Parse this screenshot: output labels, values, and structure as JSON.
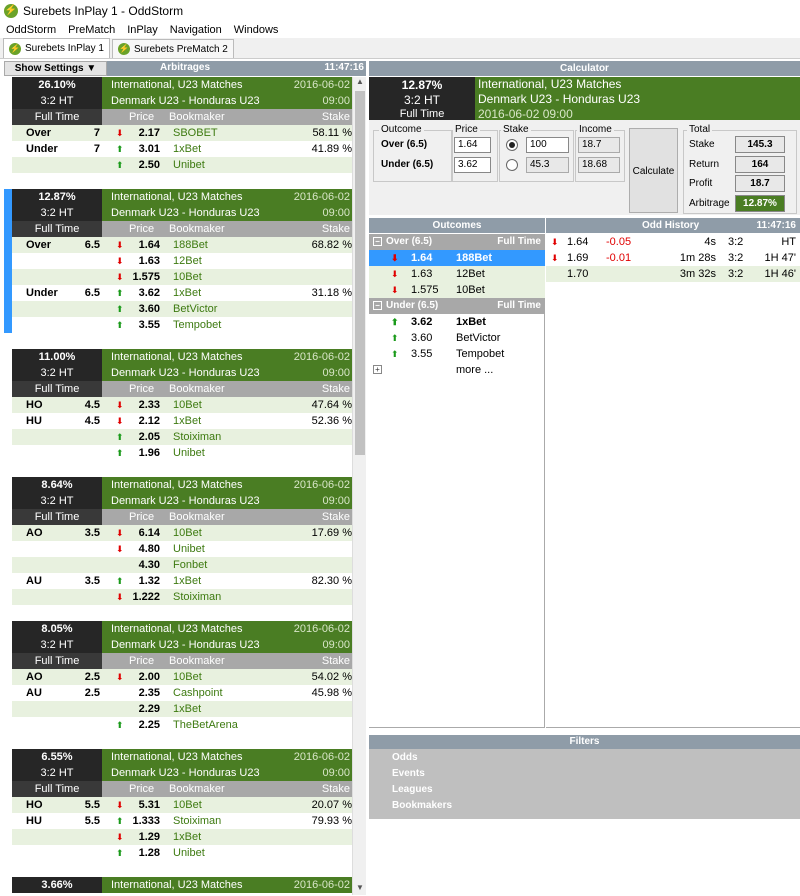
{
  "window": {
    "title": "Surebets InPlay 1 - OddStorm"
  },
  "menu": [
    "OddStorm",
    "PreMatch",
    "InPlay",
    "Navigation",
    "Windows"
  ],
  "tabs": [
    {
      "label": "Surebets InPlay 1"
    },
    {
      "label": "Surebets PreMatch 2"
    }
  ],
  "left": {
    "show_settings": "Show Settings ▼",
    "title": "Arbitrages",
    "time": "11:47:16",
    "col_price": "Price",
    "col_bookmaker": "Bookmaker",
    "col_stake": "Stake",
    "blocks": [
      {
        "pct": "26.10%",
        "score": "3:2 HT",
        "period": "Full Time",
        "league": "International, U23 Matches",
        "date": "2016-06-02",
        "match": "Denmark U23 - Honduras U23",
        "time": "09:00",
        "rows": [
          {
            "outcome": "Over",
            "handicap": "7",
            "dir": "down",
            "price": "2.17",
            "bookmaker": "SBOBET",
            "stake": "58.11 %"
          },
          {
            "outcome": "Under",
            "handicap": "7",
            "dir": "up",
            "price": "3.01",
            "bookmaker": "1xBet",
            "stake": "41.89 %"
          },
          {
            "outcome": "",
            "handicap": "",
            "dir": "up",
            "price": "2.50",
            "bookmaker": "Unibet",
            "stake": ""
          }
        ]
      },
      {
        "pct": "12.87%",
        "score": "3:2 HT",
        "period": "Full Time",
        "league": "International, U23 Matches",
        "date": "2016-06-02",
        "match": "Denmark U23 - Honduras U23",
        "time": "09:00",
        "rows": [
          {
            "outcome": "Over",
            "handicap": "6.5",
            "dir": "down",
            "price": "1.64",
            "bookmaker": "188Bet",
            "stake": "68.82 %"
          },
          {
            "outcome": "",
            "handicap": "",
            "dir": "down",
            "price": "1.63",
            "bookmaker": "12Bet",
            "stake": ""
          },
          {
            "outcome": "",
            "handicap": "",
            "dir": "down",
            "price": "1.575",
            "bookmaker": "10Bet",
            "stake": ""
          },
          {
            "outcome": "Under",
            "handicap": "6.5",
            "dir": "up",
            "price": "3.62",
            "bookmaker": "1xBet",
            "stake": "31.18 %"
          },
          {
            "outcome": "",
            "handicap": "",
            "dir": "up",
            "price": "3.60",
            "bookmaker": "BetVictor",
            "stake": ""
          },
          {
            "outcome": "",
            "handicap": "",
            "dir": "up",
            "price": "3.55",
            "bookmaker": "Tempobet",
            "stake": ""
          }
        ]
      },
      {
        "pct": "11.00%",
        "score": "3:2 HT",
        "period": "Full Time",
        "league": "International, U23 Matches",
        "date": "2016-06-02",
        "match": "Denmark U23 - Honduras U23",
        "time": "09:00",
        "rows": [
          {
            "outcome": "HO",
            "handicap": "4.5",
            "dir": "down",
            "price": "2.33",
            "bookmaker": "10Bet",
            "stake": "47.64 %"
          },
          {
            "outcome": "HU",
            "handicap": "4.5",
            "dir": "down",
            "price": "2.12",
            "bookmaker": "1xBet",
            "stake": "52.36 %"
          },
          {
            "outcome": "",
            "handicap": "",
            "dir": "up",
            "price": "2.05",
            "bookmaker": "Stoiximan",
            "stake": ""
          },
          {
            "outcome": "",
            "handicap": "",
            "dir": "up",
            "price": "1.96",
            "bookmaker": "Unibet",
            "stake": ""
          }
        ]
      },
      {
        "pct": "8.64%",
        "score": "3:2 HT",
        "period": "Full Time",
        "league": "International, U23 Matches",
        "date": "2016-06-02",
        "match": "Denmark U23 - Honduras U23",
        "time": "09:00",
        "rows": [
          {
            "outcome": "AO",
            "handicap": "3.5",
            "dir": "down",
            "price": "6.14",
            "bookmaker": "10Bet",
            "stake": "17.69 %"
          },
          {
            "outcome": "",
            "handicap": "",
            "dir": "down",
            "price": "4.80",
            "bookmaker": "Unibet",
            "stake": ""
          },
          {
            "outcome": "",
            "handicap": "",
            "dir": "",
            "price": "4.30",
            "bookmaker": "Fonbet",
            "stake": ""
          },
          {
            "outcome": "AU",
            "handicap": "3.5",
            "dir": "up",
            "price": "1.32",
            "bookmaker": "1xBet",
            "stake": "82.30 %"
          },
          {
            "outcome": "",
            "handicap": "",
            "dir": "down",
            "price": "1.222",
            "bookmaker": "Stoiximan",
            "stake": ""
          }
        ]
      },
      {
        "pct": "8.05%",
        "score": "3:2 HT",
        "period": "Full Time",
        "league": "International, U23 Matches",
        "date": "2016-06-02",
        "match": "Denmark U23 - Honduras U23",
        "time": "09:00",
        "rows": [
          {
            "outcome": "AO",
            "handicap": "2.5",
            "dir": "down",
            "price": "2.00",
            "bookmaker": "10Bet",
            "stake": "54.02 %"
          },
          {
            "outcome": "AU",
            "handicap": "2.5",
            "dir": "",
            "price": "2.35",
            "bookmaker": "Cashpoint",
            "stake": "45.98 %"
          },
          {
            "outcome": "",
            "handicap": "",
            "dir": "",
            "price": "2.29",
            "bookmaker": "1xBet",
            "stake": ""
          },
          {
            "outcome": "",
            "handicap": "",
            "dir": "up",
            "price": "2.25",
            "bookmaker": "TheBetArena",
            "stake": ""
          }
        ]
      },
      {
        "pct": "6.55%",
        "score": "3:2 HT",
        "period": "Full Time",
        "league": "International, U23 Matches",
        "date": "2016-06-02",
        "match": "Denmark U23 - Honduras U23",
        "time": "09:00",
        "rows": [
          {
            "outcome": "HO",
            "handicap": "5.5",
            "dir": "down",
            "price": "5.31",
            "bookmaker": "10Bet",
            "stake": "20.07 %"
          },
          {
            "outcome": "HU",
            "handicap": "5.5",
            "dir": "up",
            "price": "1.333",
            "bookmaker": "Stoiximan",
            "stake": "79.93 %"
          },
          {
            "outcome": "",
            "handicap": "",
            "dir": "down",
            "price": "1.29",
            "bookmaker": "1xBet",
            "stake": ""
          },
          {
            "outcome": "",
            "handicap": "",
            "dir": "up",
            "price": "1.28",
            "bookmaker": "Unibet",
            "stake": ""
          }
        ]
      },
      {
        "pct": "3.66%",
        "score": "",
        "period": "",
        "league": "International, U23 Matches",
        "date": "2016-06-02",
        "match": "",
        "time": "",
        "rows": []
      }
    ]
  },
  "calculator": {
    "title": "Calculator",
    "pct": "12.87%",
    "score": "3:2 HT",
    "period": "Full Time",
    "league": "International, U23 Matches",
    "match": "Denmark U23 - Honduras U23",
    "datetime": "2016-06-02 09:00",
    "outcome_label": "Outcome",
    "price_label": "Price",
    "stake_label": "Stake",
    "income_label": "Income",
    "total_label": "Total",
    "rows": [
      {
        "outcome": "Over (6.5)",
        "price": "1.64",
        "stake": "100",
        "income": "18.7",
        "selected": true
      },
      {
        "outcome": "Under (6.5)",
        "price": "3.62",
        "stake": "45.3",
        "income": "18.68",
        "selected": false
      }
    ],
    "calculate_label": "Calculate",
    "totals": [
      {
        "label": "Stake",
        "value": "145.3"
      },
      {
        "label": "Return",
        "value": "164"
      },
      {
        "label": "Profit",
        "value": "18.7"
      },
      {
        "label": "Arbitrage",
        "value": "12.87%"
      }
    ]
  },
  "outcomes": {
    "title": "Outcomes",
    "groups": [
      {
        "label": "Over (6.5)",
        "period": "Full Time",
        "rows": [
          {
            "dir": "down",
            "price": "1.64",
            "bookmaker": "188Bet",
            "selected": true
          },
          {
            "dir": "down",
            "price": "1.63",
            "bookmaker": "12Bet",
            "selected": false
          },
          {
            "dir": "down",
            "price": "1.575",
            "bookmaker": "10Bet",
            "selected": false
          }
        ]
      },
      {
        "label": "Under (6.5)",
        "period": "Full Time",
        "rows": [
          {
            "dir": "up",
            "price": "3.62",
            "bookmaker": "1xBet",
            "selected": false
          },
          {
            "dir": "up",
            "price": "3.60",
            "bookmaker": "BetVictor",
            "selected": false
          },
          {
            "dir": "up",
            "price": "3.55",
            "bookmaker": "Tempobet",
            "selected": false
          }
        ]
      }
    ],
    "more": "more ..."
  },
  "history": {
    "title": "Odd History",
    "time": "11:47:16",
    "rows": [
      {
        "dir": "down",
        "price": "1.64",
        "change": "-0.05",
        "ago": "4s",
        "score": "3:2",
        "phase": "HT"
      },
      {
        "dir": "down",
        "price": "1.69",
        "change": "-0.01",
        "ago": "1m 28s",
        "score": "3:2",
        "phase": "1H 47'"
      },
      {
        "dir": "",
        "price": "1.70",
        "change": "",
        "ago": "3m 32s",
        "score": "3:2",
        "phase": "1H 46'"
      }
    ]
  },
  "filters": {
    "title": "Filters",
    "items": [
      "Odds",
      "Events",
      "Leagues",
      "Bookmakers"
    ]
  },
  "colors": {
    "accent_green": "#4a7d23",
    "header_gray": "#8f9ca8",
    "selection_blue": "#3399ff",
    "up": "#1a9a1a",
    "down": "#e00000"
  }
}
